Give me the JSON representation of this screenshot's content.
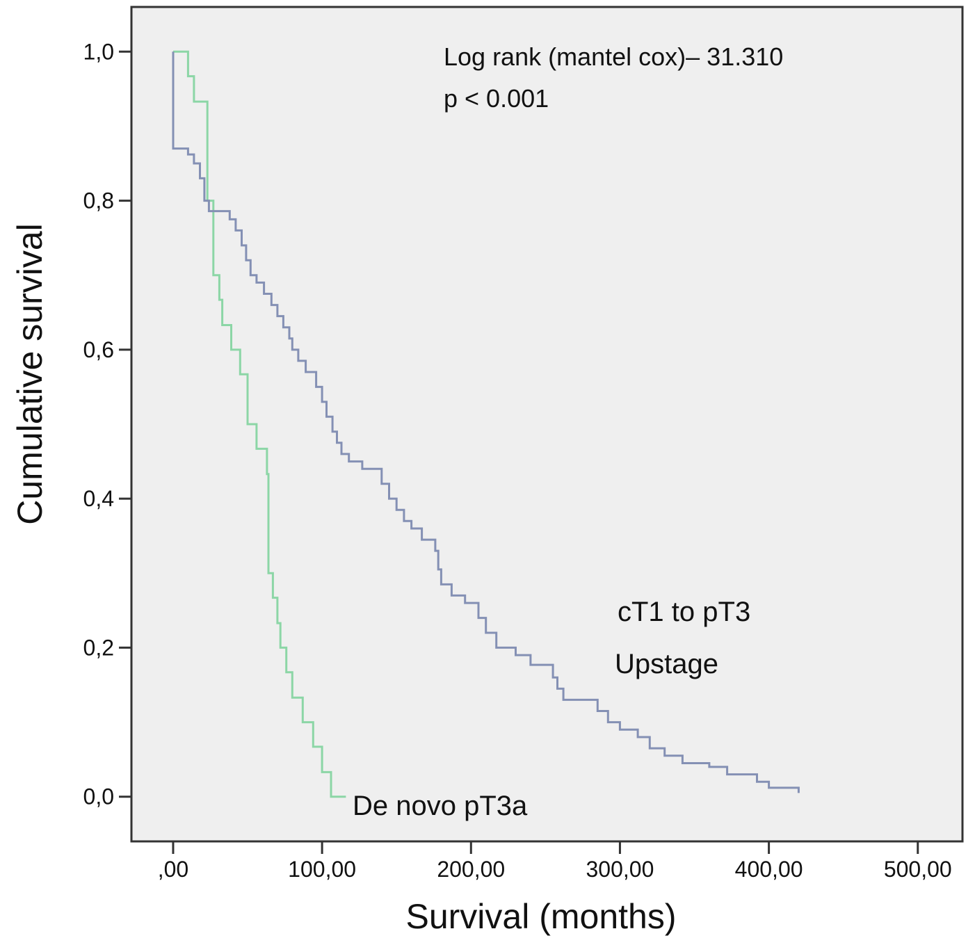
{
  "chart_data": {
    "type": "line",
    "step": true,
    "title": "",
    "xlabel": "Survival (months)",
    "ylabel": "Cumulative survival",
    "xlim": [
      -28,
      530
    ],
    "ylim": [
      -0.06,
      1.06
    ],
    "xticks": [
      {
        "value": 0,
        "label": ",00"
      },
      {
        "value": 100,
        "label": "100,00"
      },
      {
        "value": 200,
        "label": "200,00"
      },
      {
        "value": 300,
        "label": "300,00"
      },
      {
        "value": 400,
        "label": "400,00"
      },
      {
        "value": 500,
        "label": "500,00"
      }
    ],
    "yticks": [
      {
        "value": 0,
        "label": "0,0"
      },
      {
        "value": 0.2,
        "label": "0,2"
      },
      {
        "value": 0.4,
        "label": "0,4"
      },
      {
        "value": 0.6,
        "label": "0,6"
      },
      {
        "value": 0.8,
        "label": "0,8"
      },
      {
        "value": 1.0,
        "label": "1,0"
      }
    ],
    "grid": false,
    "background": "#efefef",
    "annotations": [
      "Log rank (mantel cox)– 31.310",
      "p < 0.001"
    ],
    "series": [
      {
        "name": "De novo pT3a",
        "color": "#8cd6a6",
        "points": [
          [
            0,
            1.0
          ],
          [
            10,
            1.0
          ],
          [
            10,
            0.967
          ],
          [
            14,
            0.967
          ],
          [
            14,
            0.933
          ],
          [
            23,
            0.933
          ],
          [
            23,
            0.8
          ],
          [
            27,
            0.8
          ],
          [
            27,
            0.7
          ],
          [
            31,
            0.7
          ],
          [
            31,
            0.667
          ],
          [
            33,
            0.667
          ],
          [
            33,
            0.633
          ],
          [
            39,
            0.633
          ],
          [
            39,
            0.6
          ],
          [
            45,
            0.6
          ],
          [
            45,
            0.567
          ],
          [
            50,
            0.567
          ],
          [
            50,
            0.5
          ],
          [
            56,
            0.5
          ],
          [
            56,
            0.467
          ],
          [
            63,
            0.467
          ],
          [
            63,
            0.433
          ],
          [
            64,
            0.433
          ],
          [
            64,
            0.3
          ],
          [
            67,
            0.3
          ],
          [
            67,
            0.267
          ],
          [
            70,
            0.267
          ],
          [
            70,
            0.233
          ],
          [
            72,
            0.233
          ],
          [
            72,
            0.2
          ],
          [
            76,
            0.2
          ],
          [
            76,
            0.167
          ],
          [
            80,
            0.167
          ],
          [
            80,
            0.133
          ],
          [
            87,
            0.133
          ],
          [
            87,
            0.1
          ],
          [
            94,
            0.1
          ],
          [
            94,
            0.067
          ],
          [
            100,
            0.067
          ],
          [
            100,
            0.033
          ],
          [
            106,
            0.033
          ],
          [
            106,
            0.0
          ],
          [
            116,
            0.0
          ]
        ]
      },
      {
        "name": "cT1 to pT3 Upstage",
        "color": "#8490b4",
        "points": [
          [
            0,
            1.0
          ],
          [
            0,
            0.87
          ],
          [
            10,
            0.87
          ],
          [
            10,
            0.862
          ],
          [
            14,
            0.862
          ],
          [
            14,
            0.85
          ],
          [
            18,
            0.85
          ],
          [
            18,
            0.83
          ],
          [
            21,
            0.83
          ],
          [
            21,
            0.8
          ],
          [
            24,
            0.8
          ],
          [
            24,
            0.786
          ],
          [
            38,
            0.786
          ],
          [
            38,
            0.775
          ],
          [
            42,
            0.775
          ],
          [
            42,
            0.76
          ],
          [
            46,
            0.76
          ],
          [
            46,
            0.74
          ],
          [
            49,
            0.74
          ],
          [
            49,
            0.72
          ],
          [
            52,
            0.72
          ],
          [
            52,
            0.7
          ],
          [
            56,
            0.7
          ],
          [
            56,
            0.69
          ],
          [
            61,
            0.69
          ],
          [
            61,
            0.675
          ],
          [
            66,
            0.675
          ],
          [
            66,
            0.66
          ],
          [
            70,
            0.66
          ],
          [
            70,
            0.645
          ],
          [
            74,
            0.645
          ],
          [
            74,
            0.63
          ],
          [
            78,
            0.63
          ],
          [
            78,
            0.615
          ],
          [
            80,
            0.615
          ],
          [
            80,
            0.6
          ],
          [
            84,
            0.6
          ],
          [
            84,
            0.585
          ],
          [
            89,
            0.585
          ],
          [
            89,
            0.57
          ],
          [
            96,
            0.57
          ],
          [
            96,
            0.55
          ],
          [
            100,
            0.55
          ],
          [
            100,
            0.53
          ],
          [
            103,
            0.53
          ],
          [
            103,
            0.51
          ],
          [
            107,
            0.51
          ],
          [
            107,
            0.49
          ],
          [
            110,
            0.49
          ],
          [
            110,
            0.475
          ],
          [
            113,
            0.475
          ],
          [
            113,
            0.46
          ],
          [
            118,
            0.46
          ],
          [
            118,
            0.45
          ],
          [
            127,
            0.45
          ],
          [
            127,
            0.44
          ],
          [
            140,
            0.44
          ],
          [
            140,
            0.42
          ],
          [
            145,
            0.42
          ],
          [
            145,
            0.4
          ],
          [
            150,
            0.4
          ],
          [
            150,
            0.385
          ],
          [
            155,
            0.385
          ],
          [
            155,
            0.37
          ],
          [
            160,
            0.37
          ],
          [
            160,
            0.36
          ],
          [
            167,
            0.36
          ],
          [
            167,
            0.345
          ],
          [
            176,
            0.345
          ],
          [
            176,
            0.33
          ],
          [
            178,
            0.33
          ],
          [
            178,
            0.305
          ],
          [
            180,
            0.305
          ],
          [
            180,
            0.285
          ],
          [
            187,
            0.285
          ],
          [
            187,
            0.27
          ],
          [
            196,
            0.27
          ],
          [
            196,
            0.26
          ],
          [
            205,
            0.26
          ],
          [
            205,
            0.24
          ],
          [
            210,
            0.24
          ],
          [
            210,
            0.22
          ],
          [
            217,
            0.22
          ],
          [
            217,
            0.2
          ],
          [
            230,
            0.2
          ],
          [
            230,
            0.19
          ],
          [
            240,
            0.19
          ],
          [
            240,
            0.177
          ],
          [
            255,
            0.177
          ],
          [
            255,
            0.16
          ],
          [
            258,
            0.16
          ],
          [
            258,
            0.145
          ],
          [
            262,
            0.145
          ],
          [
            262,
            0.13
          ],
          [
            285,
            0.13
          ],
          [
            285,
            0.115
          ],
          [
            292,
            0.115
          ],
          [
            292,
            0.1
          ],
          [
            300,
            0.1
          ],
          [
            300,
            0.09
          ],
          [
            312,
            0.09
          ],
          [
            312,
            0.08
          ],
          [
            320,
            0.08
          ],
          [
            320,
            0.065
          ],
          [
            330,
            0.065
          ],
          [
            330,
            0.055
          ],
          [
            342,
            0.055
          ],
          [
            342,
            0.045
          ],
          [
            360,
            0.045
          ],
          [
            360,
            0.04
          ],
          [
            372,
            0.04
          ],
          [
            372,
            0.03
          ],
          [
            392,
            0.03
          ],
          [
            392,
            0.02
          ],
          [
            400,
            0.02
          ],
          [
            400,
            0.012
          ],
          [
            420,
            0.012
          ],
          [
            420,
            0.005
          ]
        ]
      }
    ]
  }
}
